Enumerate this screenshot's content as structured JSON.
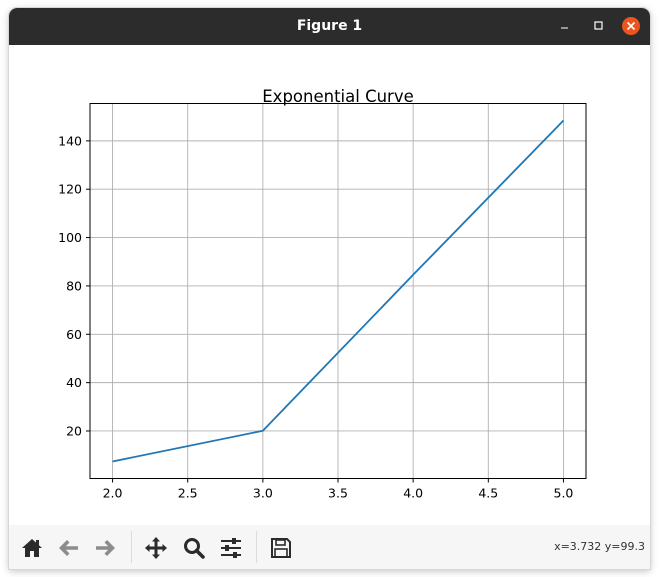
{
  "window": {
    "title": "Figure 1"
  },
  "colors": {
    "titlebar": "#2c2c2c",
    "close_button": "#e9541f",
    "line": "#1f77b4",
    "grid": "#b0b0b0",
    "toolbar_bg": "#f6f6f6"
  },
  "toolbar": {
    "buttons": [
      {
        "name": "home",
        "icon": "home-icon",
        "enabled": true
      },
      {
        "name": "back",
        "icon": "arrow-left-icon",
        "enabled": false
      },
      {
        "name": "forward",
        "icon": "arrow-right-icon",
        "enabled": false
      },
      {
        "name": "pan",
        "icon": "move-icon",
        "enabled": true
      },
      {
        "name": "zoom",
        "icon": "magnifier-icon",
        "enabled": true
      },
      {
        "name": "configure",
        "icon": "sliders-icon",
        "enabled": true
      },
      {
        "name": "save",
        "icon": "floppy-disk-icon",
        "enabled": true
      }
    ],
    "coordinates": "x=3.732 y=99.3"
  },
  "chart_data": {
    "type": "line",
    "title": "Exponential Curve",
    "xlabel": "",
    "ylabel": "",
    "x": [
      2.0,
      3.0,
      4.0,
      5.0
    ],
    "series": [
      {
        "values": [
          7.389,
          20.086,
          84.6,
          148.413
        ]
      }
    ],
    "xlim": [
      1.85,
      5.15
    ],
    "ylim": [
      0.34,
      155.46
    ],
    "xticks": [
      "2.0",
      "2.5",
      "3.0",
      "3.5",
      "4.0",
      "4.5",
      "5.0"
    ],
    "xtick_values": [
      2.0,
      2.5,
      3.0,
      3.5,
      4.0,
      4.5,
      5.0
    ],
    "yticks": [
      "20",
      "40",
      "60",
      "80",
      "100",
      "120",
      "140"
    ],
    "ytick_values": [
      20,
      40,
      60,
      80,
      100,
      120,
      140
    ],
    "grid": true,
    "legend": "none"
  }
}
